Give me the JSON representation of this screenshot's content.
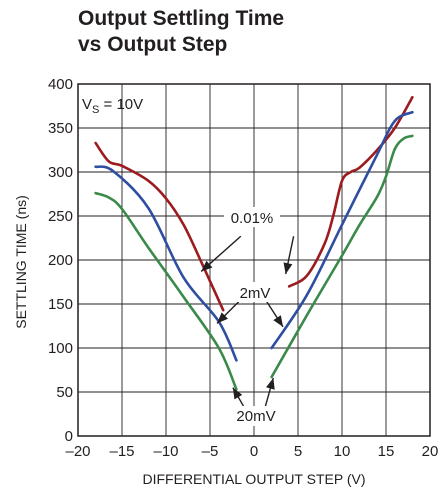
{
  "chart_data": {
    "type": "line",
    "title_line1": "Output Settling Time",
    "title_line2": "vs Output Step",
    "xlabel": "DIFFERENTIAL OUTPUT STEP (V)",
    "ylabel": "SETTLING TIME (ns)",
    "xlim": [
      -20,
      20
    ],
    "ylim": [
      0,
      400
    ],
    "xticks": [
      -20,
      -15,
      -10,
      -5,
      0,
      5,
      10,
      15,
      20
    ],
    "xtick_labels": [
      "–20",
      "–15",
      "–10",
      "–5",
      "0",
      "5",
      "10",
      "15",
      "20"
    ],
    "yticks": [
      0,
      50,
      100,
      150,
      200,
      250,
      300,
      350,
      400
    ],
    "grid": true,
    "condition_main": "V",
    "condition_sub": "S",
    "condition_rest": " = 10V",
    "annotations": [
      {
        "text": "0.01%"
      },
      {
        "text": "2mV"
      },
      {
        "text": "20mV"
      }
    ],
    "series": [
      {
        "color": "#9b1b1f",
        "segments": [
          [
            [
              -18,
              333
            ],
            [
              -16.5,
              312
            ],
            [
              -15,
              307
            ],
            [
              -12,
              290
            ],
            [
              -10,
              270
            ],
            [
              -8,
              240
            ],
            [
              -6,
              198
            ],
            [
              -4.5,
              165
            ],
            [
              -3.5,
              143
            ]
          ],
          [
            [
              4,
              170
            ],
            [
              6,
              182
            ],
            [
              8,
              218
            ],
            [
              9,
              250
            ],
            [
              10,
              290
            ],
            [
              11,
              300
            ],
            [
              12,
              305
            ],
            [
              14,
              325
            ],
            [
              16,
              350
            ],
            [
              18,
              385
            ]
          ]
        ]
      },
      {
        "color": "#2e4ea2",
        "segments": [
          [
            [
              -18,
              306
            ],
            [
              -16,
              301
            ],
            [
              -12,
              259
            ],
            [
              -8,
              180
            ],
            [
              -4,
              130
            ],
            [
              -2,
              86
            ]
          ],
          [
            [
              2,
              100
            ],
            [
              6,
              160
            ],
            [
              10,
              240
            ],
            [
              14,
              320
            ],
            [
              16,
              358
            ],
            [
              18,
              368
            ]
          ]
        ]
      },
      {
        "color": "#3a8a4a",
        "segments": [
          [
            [
              -18,
              276
            ],
            [
              -16.5,
              271
            ],
            [
              -15,
              258
            ],
            [
              -12,
              214
            ],
            [
              -8,
              158
            ],
            [
              -4,
              100
            ],
            [
              -2,
              53
            ]
          ],
          [
            [
              2,
              67
            ],
            [
              6,
              137
            ],
            [
              10,
              205
            ],
            [
              12,
              240
            ],
            [
              14,
              272
            ],
            [
              15,
              295
            ],
            [
              16,
              326
            ],
            [
              17,
              338
            ],
            [
              18,
              341
            ]
          ]
        ]
      }
    ]
  }
}
